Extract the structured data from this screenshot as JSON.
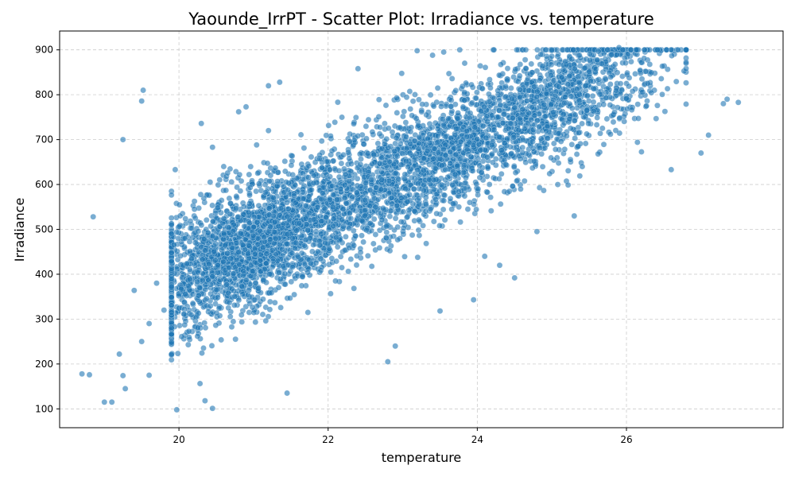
{
  "chart_data": {
    "type": "scatter",
    "title": "Yaounde_IrrPT - Scatter Plot: Irradiance vs. temperature",
    "xlabel": "temperature",
    "ylabel": "Irradiance",
    "xlim": [
      18.4,
      28.1
    ],
    "ylim": [
      58,
      942
    ],
    "xticks": [
      "20",
      "22",
      "24",
      "26"
    ],
    "yticks": [
      "100",
      "200",
      "300",
      "400",
      "500",
      "600",
      "700",
      "800",
      "900"
    ],
    "grid": true,
    "point_color": "#1f77b4",
    "point_opacity": 0.6,
    "cloud_trend": {
      "slope": 78,
      "intercept": -1170,
      "x_range": [
        19.9,
        26.8
      ],
      "approx_points": 5000
    },
    "notable_points": [
      {
        "x": 18.7,
        "y": 178
      },
      {
        "x": 18.8,
        "y": 176
      },
      {
        "x": 18.85,
        "y": 528
      },
      {
        "x": 19.0,
        "y": 115
      },
      {
        "x": 19.1,
        "y": 115
      },
      {
        "x": 19.2,
        "y": 222
      },
      {
        "x": 19.25,
        "y": 700
      },
      {
        "x": 19.25,
        "y": 174
      },
      {
        "x": 19.28,
        "y": 145
      },
      {
        "x": 19.4,
        "y": 364
      },
      {
        "x": 19.5,
        "y": 786
      },
      {
        "x": 19.52,
        "y": 810
      },
      {
        "x": 19.5,
        "y": 250
      },
      {
        "x": 19.6,
        "y": 290
      },
      {
        "x": 19.6,
        "y": 175
      },
      {
        "x": 19.7,
        "y": 380
      },
      {
        "x": 19.8,
        "y": 320
      },
      {
        "x": 19.95,
        "y": 633
      },
      {
        "x": 19.97,
        "y": 98
      },
      {
        "x": 20.3,
        "y": 736
      },
      {
        "x": 20.35,
        "y": 118
      },
      {
        "x": 20.45,
        "y": 683
      },
      {
        "x": 20.45,
        "y": 101
      },
      {
        "x": 20.6,
        "y": 640
      },
      {
        "x": 20.8,
        "y": 762
      },
      {
        "x": 20.9,
        "y": 773
      },
      {
        "x": 21.2,
        "y": 720
      },
      {
        "x": 21.2,
        "y": 820
      },
      {
        "x": 21.35,
        "y": 828
      },
      {
        "x": 21.45,
        "y": 135
      },
      {
        "x": 22.4,
        "y": 858
      },
      {
        "x": 22.8,
        "y": 205
      },
      {
        "x": 22.9,
        "y": 240
      },
      {
        "x": 23.4,
        "y": 888
      },
      {
        "x": 23.55,
        "y": 895
      },
      {
        "x": 23.5,
        "y": 318
      },
      {
        "x": 23.95,
        "y": 343
      },
      {
        "x": 24.1,
        "y": 440
      },
      {
        "x": 24.3,
        "y": 420
      },
      {
        "x": 24.5,
        "y": 392
      },
      {
        "x": 24.8,
        "y": 495
      },
      {
        "x": 24.85,
        "y": 890
      },
      {
        "x": 25.0,
        "y": 900
      },
      {
        "x": 25.3,
        "y": 530
      },
      {
        "x": 25.9,
        "y": 905
      },
      {
        "x": 25.95,
        "y": 900
      },
      {
        "x": 26.6,
        "y": 633
      },
      {
        "x": 26.8,
        "y": 870
      },
      {
        "x": 27.0,
        "y": 670
      },
      {
        "x": 27.1,
        "y": 710
      },
      {
        "x": 27.3,
        "y": 780
      },
      {
        "x": 27.35,
        "y": 790
      },
      {
        "x": 27.5,
        "y": 783
      }
    ]
  }
}
